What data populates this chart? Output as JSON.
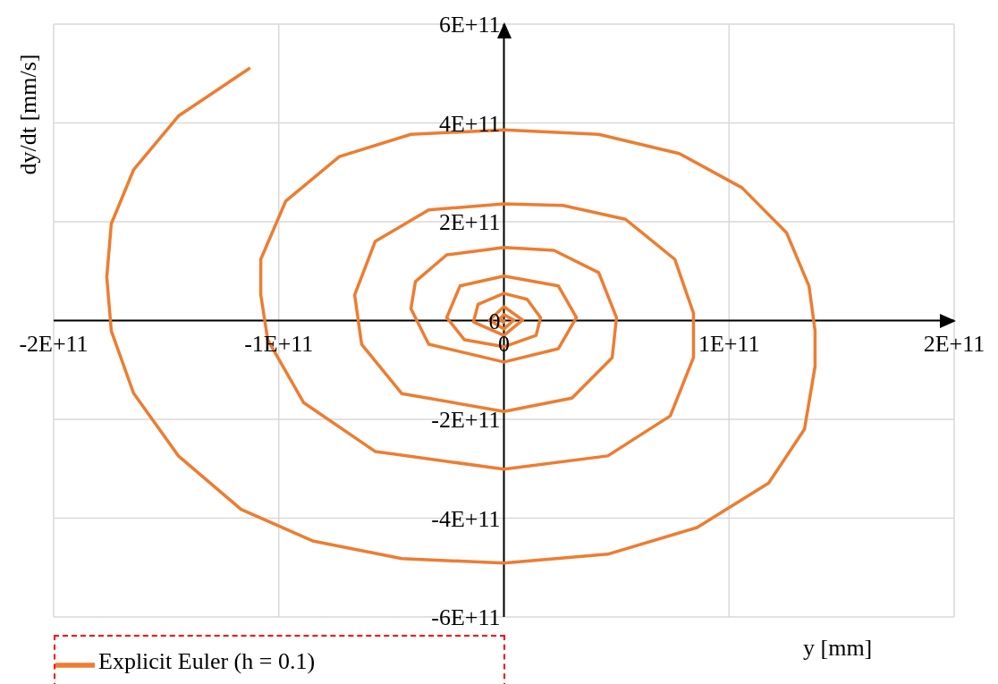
{
  "chart_data": {
    "type": "line",
    "xlabel": "y [mm]",
    "ylabel": "dy/dt [mm/s]",
    "x": [
      0,
      0,
      -2400000000.0,
      0,
      4400000000.0,
      0,
      -6400000000.0,
      0,
      8300000000.0,
      0,
      -13500000000.0,
      -11500000000.0,
      0,
      10300000000.0,
      16300000000.0,
      14300000000.0,
      0,
      -17500000000.0,
      -25400000000.0,
      -19500000000.0,
      0,
      24200000000.0,
      32200000000.0,
      24200000000.0,
      0,
      -33400000000.0,
      -41300000000.0,
      -39300000000.0,
      -25400000000.0,
      0,
      22200000000.0,
      42100000000.0,
      50000000000.0,
      48100000000.0,
      30200000000.0,
      0,
      -45300000000.0,
      -63200000000.0,
      -66300000000.0,
      -57200000000.0,
      -33400000000.0,
      0,
      26200000000.0,
      54000000000.0,
      75900000000.0,
      84200000000.0,
      84200000000.0,
      73900000000.0,
      46100000000.0,
      0,
      -57200000000.0,
      -89000000000.0,
      -104900000000.0,
      -108000000000.0,
      -108000000000.0,
      -96900000000.0,
      -73100000000.0,
      -41300000000.0,
      0,
      42100000000.0,
      77900000000.0,
      105700000000.0,
      125500000000.0,
      135500000000.0,
      138200000000.0,
      138200000000.0,
      133500000000.0,
      117600000000.0,
      85800000000.0,
      46100000000.0,
      0,
      -45300000000.0,
      -85000000000.0,
      -116800000000.0,
      -144600000000.0,
      -164500000000.0,
      -174400000000.0,
      -176400000000.0,
      -174400000000.0,
      -164500000000.0,
      -144600000000.0,
      -113200000000.0
    ],
    "series": [
      {
        "name": "Explicit Euler (h = 0.1)",
        "color": "#ed7d31",
        "values": [
          0,
          -3000000000.0,
          1000000000.0,
          12000000000.0,
          1000000000.0,
          -17000000000.0,
          1000000000.0,
          28000000000.0,
          1000000000.0,
          -30000000000.0,
          -3000000000.0,
          33000000000.0,
          55000000000.0,
          43000000000.0,
          6000000000.0,
          -30000000000.0,
          -53000000000.0,
          -39000000000.0,
          6000000000.0,
          70000000000.0,
          90000000000.0,
          70000000000.0,
          6000000000.0,
          -57000000000.0,
          -84000000000.0,
          -48000000000.0,
          24000000000.0,
          79000000000.0,
          133000000000.0,
          148000000000.0,
          142000000000.0,
          97000000000.0,
          6000000000.0,
          -75000000000.0,
          -157000000000.0,
          -184000000000.0,
          -148000000000.0,
          -48000000000.0,
          52000000000.0,
          160000000000.0,
          224000000000.0,
          236000000000.0,
          233000000000.0,
          205000000000.0,
          124000000000.0,
          15000000000.0,
          -75000000000.0,
          -193000000000.0,
          -274000000000.0,
          -301000000000.0,
          -265000000000.0,
          -166000000000.0,
          -39000000000.0,
          52000000000.0,
          124000000000.0,
          242000000000.0,
          332000000000.0,
          377000000000.0,
          386000000000.0,
          377000000000.0,
          338000000000.0,
          269000000000.0,
          178000000000.0,
          70000000000.0,
          -21000000000.0,
          -93000000000.0,
          -220000000000.0,
          -329000000000.0,
          -419000000000.0,
          -473000000000.0,
          -491000000000.0,
          -482000000000.0,
          -446000000000.0,
          -382000000000.0,
          -274000000000.0,
          -147000000000.0,
          -21000000000.0,
          88000000000.0,
          196000000000.0,
          305000000000.0,
          414000000000.0,
          510000000000.0
        ]
      }
    ],
    "xlim": [
      -200000000000.0,
      200000000000.0
    ],
    "xticks": [
      {
        "value": -200000000000.0,
        "label": "-2E+11"
      },
      {
        "value": -100000000000.0,
        "label": "-1E+11"
      },
      0,
      {
        "value": 100000000000.0,
        "label": "1E+11"
      },
      {
        "value": 200000000000.0,
        "label": "2E+11"
      }
    ],
    "ylim": [
      -600000000000.0,
      600000000000.0
    ],
    "yticks": [
      {
        "value": -600000000000.0,
        "label": "-6E+11"
      },
      {
        "value": -400000000000.0,
        "label": "-4E+11"
      },
      {
        "value": -200000000000.0,
        "label": "-2E+11"
      },
      0,
      {
        "value": 200000000000.0,
        "label": "2E+11"
      },
      {
        "value": 400000000000.0,
        "label": "4E+11"
      },
      {
        "value": 600000000000.0,
        "label": "6E+11"
      }
    ],
    "grid": true,
    "legend": "bottom left",
    "marker": "none",
    "line_style": "solid"
  }
}
